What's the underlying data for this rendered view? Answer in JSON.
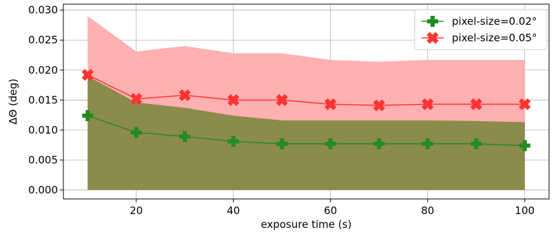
{
  "chart_data": {
    "type": "line",
    "xlabel": "exposure time (s)",
    "ylabel": "ΔΘ (deg)",
    "xlim": [
      5,
      105
    ],
    "ylim": [
      -0.0015,
      0.031
    ],
    "xticks": [
      20,
      40,
      60,
      80,
      100
    ],
    "yticks": [
      0.0,
      0.005,
      0.01,
      0.015,
      0.02,
      0.025,
      0.03
    ],
    "ytick_labels": [
      "0.000",
      "0.005",
      "0.010",
      "0.015",
      "0.020",
      "0.025",
      "0.030"
    ],
    "xtick_labels": [
      "20",
      "40",
      "60",
      "80",
      "100"
    ],
    "grid": true,
    "legend_position": "top-right",
    "x": [
      10,
      20,
      30,
      40,
      50,
      60,
      70,
      80,
      90,
      100
    ],
    "series": [
      {
        "name": "pixel-size=0.02°",
        "color": "#228b22",
        "marker": "plus",
        "values": [
          0.0124,
          0.0096,
          0.0089,
          0.0081,
          0.0077,
          0.0077,
          0.0077,
          0.0077,
          0.0077,
          0.0074
        ],
        "band_upper": [
          0.019,
          0.0146,
          0.0137,
          0.0124,
          0.0116,
          0.0116,
          0.0116,
          0.0116,
          0.0115,
          0.0113
        ],
        "band_lower": [
          0.0,
          0.0,
          0.0,
          0.0,
          0.0,
          0.0,
          0.0,
          0.0,
          0.0,
          0.0
        ],
        "band_color": "#8b8b4b"
      },
      {
        "name": "pixel-size=0.05°",
        "color": "#ff3333",
        "marker": "x",
        "values": [
          0.0192,
          0.0152,
          0.0158,
          0.015,
          0.015,
          0.0143,
          0.0141,
          0.0143,
          0.0143,
          0.0143
        ],
        "band_upper": [
          0.029,
          0.0231,
          0.024,
          0.0228,
          0.0228,
          0.0217,
          0.0214,
          0.0217,
          0.0217,
          0.0217
        ],
        "band_lower": [
          0.0,
          0.0,
          0.0,
          0.0,
          0.0,
          0.0,
          0.0,
          0.0,
          0.0,
          0.0
        ],
        "band_color": "#ffb0b0"
      }
    ]
  }
}
